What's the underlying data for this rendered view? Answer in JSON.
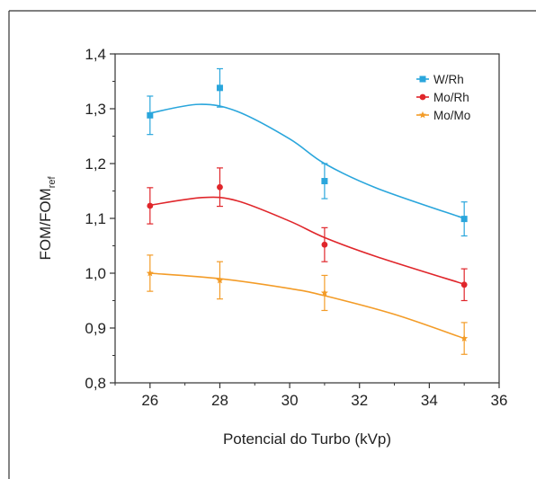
{
  "chart_data": {
    "type": "scatter",
    "xlabel": "Potencial do Turbo (kVp)",
    "ylabel_main": "FOM/FOM",
    "ylabel_sub": "ref",
    "xlim": [
      25,
      36
    ],
    "ylim": [
      0.8,
      1.4
    ],
    "xticks": [
      26,
      28,
      30,
      32,
      34,
      36
    ],
    "xtick_labels": [
      "26",
      "28",
      "30",
      "32",
      "34",
      "36"
    ],
    "yticks": [
      0.8,
      0.9,
      1.0,
      1.1,
      1.2,
      1.3,
      1.4
    ],
    "ytick_labels": [
      "0,8",
      "0,9",
      "1,0",
      "1,1",
      "1,2",
      "1,3",
      "1,4"
    ],
    "grid": false,
    "legend_position": "top-right",
    "series": [
      {
        "name": "W/Rh",
        "color": "#2aa6dc",
        "marker": "square",
        "x": [
          26,
          28,
          31,
          35
        ],
        "y": [
          1.288,
          1.338,
          1.168,
          1.099
        ],
        "err": [
          0.035,
          0.035,
          0.032,
          0.031
        ],
        "fit": [
          [
            26,
            1.292
          ],
          [
            27.4,
            1.308
          ],
          [
            28.5,
            1.295
          ],
          [
            30,
            1.245
          ],
          [
            31,
            1.2
          ],
          [
            32.5,
            1.155
          ],
          [
            35,
            1.1
          ]
        ]
      },
      {
        "name": "Mo/Rh",
        "color": "#e0262b",
        "marker": "circle",
        "x": [
          26,
          28,
          31,
          35
        ],
        "y": [
          1.123,
          1.157,
          1.052,
          0.979
        ],
        "err": [
          0.033,
          0.035,
          0.031,
          0.029
        ],
        "fit": [
          [
            26,
            1.124
          ],
          [
            27.5,
            1.138
          ],
          [
            28.5,
            1.132
          ],
          [
            30,
            1.095
          ],
          [
            31,
            1.065
          ],
          [
            32.5,
            1.03
          ],
          [
            35,
            0.98
          ]
        ]
      },
      {
        "name": "Mo/Mo",
        "color": "#f39c28",
        "marker": "star",
        "x": [
          26,
          28,
          31,
          35
        ],
        "y": [
          1.0,
          0.987,
          0.964,
          0.881
        ],
        "err": [
          0.033,
          0.034,
          0.032,
          0.029
        ],
        "fit": [
          [
            26,
            1.0
          ],
          [
            28,
            0.99
          ],
          [
            30,
            0.972
          ],
          [
            31,
            0.959
          ],
          [
            33,
            0.925
          ],
          [
            35,
            0.881
          ]
        ]
      }
    ]
  }
}
